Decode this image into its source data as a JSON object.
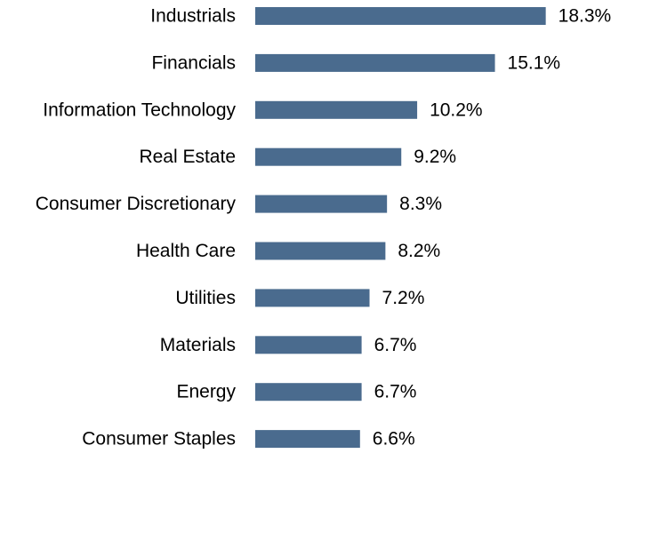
{
  "chart_data": {
    "type": "bar",
    "orientation": "horizontal",
    "categories": [
      "Industrials",
      "Financials",
      "Information Technology",
      "Real Estate",
      "Consumer Discretionary",
      "Health Care",
      "Utilities",
      "Materials",
      "Energy",
      "Consumer Staples"
    ],
    "values": [
      18.3,
      15.1,
      10.2,
      9.2,
      8.3,
      8.2,
      7.2,
      6.7,
      6.7,
      6.6
    ],
    "value_labels": [
      "18.3%",
      "15.1%",
      "10.2%",
      "9.2%",
      "8.3%",
      "8.2%",
      "7.2%",
      "6.7%",
      "6.7%",
      "6.6%"
    ],
    "unit": "%",
    "title": "",
    "xlabel": "",
    "ylabel": "",
    "grid": false,
    "legend": "none",
    "bar_color": "#4a6b8e"
  }
}
